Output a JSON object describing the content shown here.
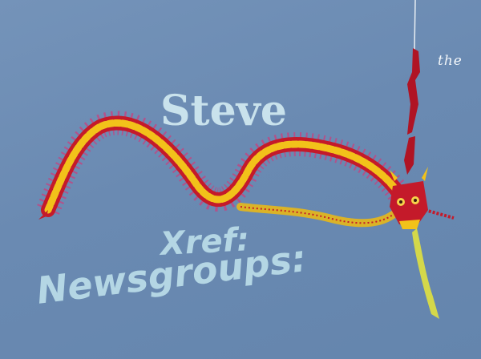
{
  "texts": {
    "the": "the",
    "steve": "Steve",
    "xref": "Xref:",
    "newsgroups": "Newsgroups:"
  },
  "colors": {
    "sky": "#6d8db4",
    "kite_red": "#c41a2a",
    "kite_yellow": "#f2c21a",
    "text": "#b8d9e6"
  }
}
